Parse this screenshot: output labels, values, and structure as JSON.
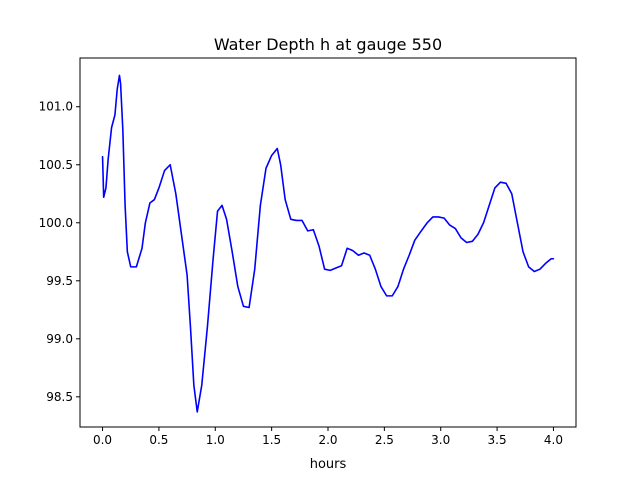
{
  "chart_data": {
    "type": "line",
    "title": "Water Depth h at gauge 550",
    "xlabel": "hours",
    "ylabel": "",
    "xlim": [
      -0.2,
      4.2
    ],
    "ylim": [
      98.24,
      101.42
    ],
    "grid": false,
    "legend": "none",
    "xticks": [
      0.0,
      0.5,
      1.0,
      1.5,
      2.0,
      2.5,
      3.0,
      3.5,
      4.0
    ],
    "xtick_labels": [
      "0.0",
      "0.5",
      "1.0",
      "1.5",
      "2.0",
      "2.5",
      "3.0",
      "3.5",
      "4.0"
    ],
    "yticks": [
      98.5,
      99.0,
      99.5,
      100.0,
      100.5,
      101.0
    ],
    "ytick_labels": [
      "98.5",
      "99.0",
      "99.5",
      "100.0",
      "100.5",
      "101.0"
    ],
    "series": [
      {
        "color": "#0000ff",
        "x": [
          0.0,
          0.01,
          0.03,
          0.05,
          0.08,
          0.11,
          0.13,
          0.15,
          0.16,
          0.18,
          0.2,
          0.22,
          0.25,
          0.3,
          0.35,
          0.38,
          0.42,
          0.46,
          0.5,
          0.55,
          0.6,
          0.65,
          0.7,
          0.75,
          0.78,
          0.81,
          0.84,
          0.88,
          0.93,
          0.98,
          1.02,
          1.06,
          1.1,
          1.15,
          1.2,
          1.25,
          1.3,
          1.35,
          1.4,
          1.45,
          1.5,
          1.55,
          1.58,
          1.62,
          1.67,
          1.72,
          1.77,
          1.82,
          1.87,
          1.92,
          1.97,
          2.02,
          2.07,
          2.12,
          2.17,
          2.22,
          2.27,
          2.32,
          2.37,
          2.42,
          2.47,
          2.52,
          2.57,
          2.62,
          2.67,
          2.72,
          2.77,
          2.82,
          2.88,
          2.93,
          2.98,
          3.03,
          3.08,
          3.13,
          3.18,
          3.23,
          3.28,
          3.33,
          3.38,
          3.43,
          3.48,
          3.53,
          3.58,
          3.63,
          3.68,
          3.73,
          3.78,
          3.83,
          3.88,
          3.93,
          3.98,
          4.0
        ],
        "y": [
          100.57,
          100.22,
          100.3,
          100.55,
          100.82,
          100.93,
          101.15,
          101.27,
          101.2,
          100.8,
          100.15,
          99.75,
          99.62,
          99.62,
          99.78,
          100.0,
          100.17,
          100.2,
          100.3,
          100.45,
          100.5,
          100.25,
          99.9,
          99.55,
          99.1,
          98.6,
          98.37,
          98.6,
          99.1,
          99.68,
          100.1,
          100.15,
          100.03,
          99.75,
          99.45,
          99.28,
          99.27,
          99.6,
          100.15,
          100.47,
          100.58,
          100.64,
          100.5,
          100.2,
          100.03,
          100.02,
          100.02,
          99.93,
          99.94,
          99.8,
          99.6,
          99.59,
          99.61,
          99.63,
          99.78,
          99.76,
          99.72,
          99.74,
          99.72,
          99.6,
          99.45,
          99.37,
          99.37,
          99.45,
          99.6,
          99.72,
          99.85,
          99.92,
          100.0,
          100.05,
          100.05,
          100.04,
          99.98,
          99.95,
          99.87,
          99.83,
          99.84,
          99.9,
          100.0,
          100.15,
          100.3,
          100.35,
          100.34,
          100.25,
          100.0,
          99.75,
          99.62,
          99.58,
          99.6,
          99.65,
          99.69,
          99.69
        ]
      }
    ]
  }
}
